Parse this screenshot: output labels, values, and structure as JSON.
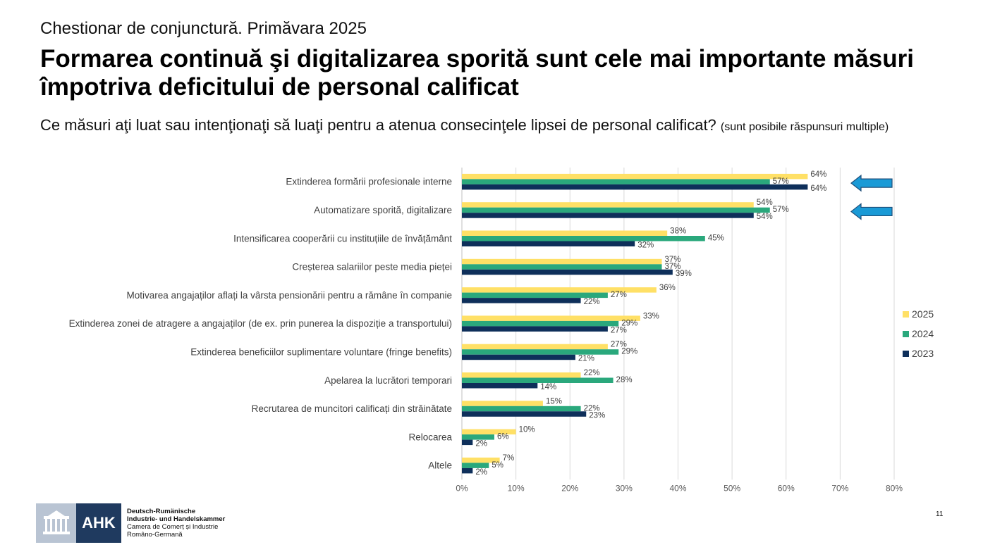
{
  "header": {
    "kicker": "Chestionar de conjunctură. Primăvara 2025",
    "title": "Formarea continuă şi digitalizarea sporită sunt cele mai importante măsuri împotriva deficitului de personal calificat",
    "question": "Ce măsuri aţi luat sau intenţionaţi să luaţi pentru a atenua consecinţele lipsei de personal calificat?",
    "question_note": "(sunt posibile răspunsuri multiple)"
  },
  "chart_data": {
    "type": "bar",
    "orientation": "horizontal",
    "categories": [
      "Extinderea formării profesionale interne",
      "Automatizare sporită, digitalizare",
      "Intensificarea cooperării cu instituțiile de învățământ",
      "Creșterea salariilor peste media pieței",
      "Motivarea angajaților aflați la vârsta pensionării pentru a rămâne în companie",
      "Extinderea zonei de atragere a angajaților (de ex. prin punerea la dispoziție a transportului)",
      "Extinderea beneficiilor suplimentare voluntare (fringe benefits)",
      "Apelarea la lucrători temporari",
      "Recrutarea de muncitori calificați din străinătate",
      "Relocarea",
      "Altele"
    ],
    "series": [
      {
        "name": "2025",
        "color": "#ffe066",
        "values": [
          64,
          54,
          38,
          37,
          36,
          33,
          27,
          22,
          15,
          10,
          7
        ]
      },
      {
        "name": "2024",
        "color": "#2aa87c",
        "values": [
          57,
          57,
          45,
          37,
          27,
          29,
          29,
          28,
          22,
          6,
          5
        ]
      },
      {
        "name": "2023",
        "color": "#0e2f5a",
        "values": [
          64,
          54,
          32,
          39,
          22,
          27,
          21,
          14,
          23,
          2,
          2
        ]
      }
    ],
    "xlim": [
      0,
      80
    ],
    "x_ticks": [
      "0%",
      "10%",
      "20%",
      "30%",
      "40%",
      "50%",
      "60%",
      "70%",
      "80%"
    ],
    "value_suffix": "%",
    "grid": "vertical",
    "legend_position": "right",
    "highlight_rows": [
      0,
      1
    ],
    "highlight_color": "#1a9ad6"
  },
  "footer": {
    "logo_text": "AHK",
    "org_line1": "Deutsch-Rumänische",
    "org_line2": "Industrie- und Handelskammer",
    "org_line3": "Camera de Comerț și Industrie",
    "org_line4": "Româno-Germană",
    "page_number": "11"
  }
}
